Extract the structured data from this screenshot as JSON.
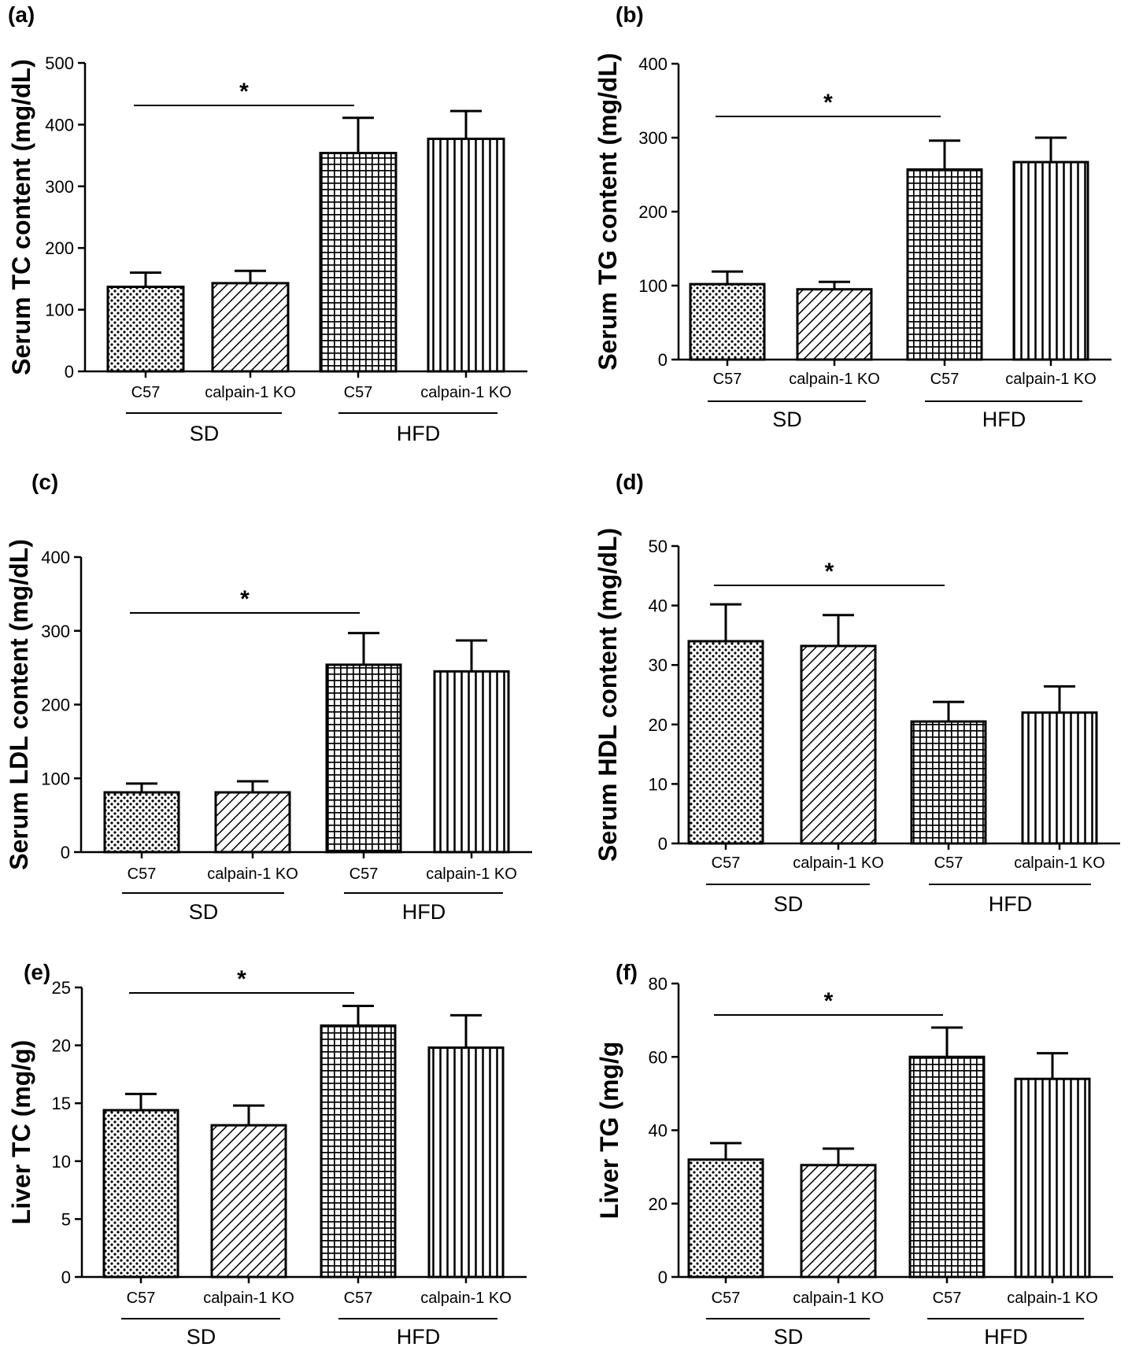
{
  "figure": {
    "layout": "3 rows x 2 columns bar charts",
    "bar_colors": {
      "fill": "#ffffff",
      "stroke": "#000000"
    },
    "bar_patterns": [
      "dots",
      "diagonal-hatch",
      "grid",
      "vertical-lines"
    ]
  },
  "chart_data": [
    {
      "label": "(a)",
      "type": "bar",
      "ylabel": "Serum TC content (mg/dL)",
      "ylim": [
        0,
        500
      ],
      "yticks": [
        0,
        100,
        200,
        300,
        400,
        500
      ],
      "categories": [
        "C57",
        "calpain-1 KO",
        "C57",
        "calpain-1 KO"
      ],
      "groups": [
        {
          "name": "SD",
          "categories": [
            0,
            1
          ]
        },
        {
          "name": "HFD",
          "categories": [
            2,
            3
          ]
        }
      ],
      "values": [
        137,
        143,
        354,
        377
      ],
      "errors": [
        23,
        20,
        57,
        45
      ],
      "significance": {
        "from": 0,
        "to": 2,
        "label": "*"
      }
    },
    {
      "label": "(b)",
      "type": "bar",
      "ylabel": "Serum TG content (mg/dL)",
      "ylim": [
        0,
        400
      ],
      "yticks": [
        0,
        100,
        200,
        300,
        400
      ],
      "categories": [
        "C57",
        "calpain-1 KO",
        "C57",
        "calpain-1 KO"
      ],
      "groups": [
        {
          "name": "SD",
          "categories": [
            0,
            1
          ]
        },
        {
          "name": "HFD",
          "categories": [
            2,
            3
          ]
        }
      ],
      "values": [
        102,
        95,
        257,
        267
      ],
      "errors": [
        17,
        10,
        39,
        33
      ],
      "significance": {
        "from": 0,
        "to": 2,
        "label": "*"
      }
    },
    {
      "label": "(c)",
      "type": "bar",
      "ylabel": "Serum LDL content (mg/dL)",
      "ylim": [
        0,
        400
      ],
      "yticks": [
        0,
        100,
        200,
        300,
        400
      ],
      "categories": [
        "C57",
        "calpain-1 KO",
        "C57",
        "calpain-1 KO"
      ],
      "groups": [
        {
          "name": "SD",
          "categories": [
            0,
            1
          ]
        },
        {
          "name": "HFD",
          "categories": [
            2,
            3
          ]
        }
      ],
      "values": [
        81,
        81,
        254,
        245
      ],
      "errors": [
        12,
        15,
        43,
        42
      ],
      "significance": {
        "from": 0,
        "to": 2,
        "label": "*"
      }
    },
    {
      "label": "(d)",
      "type": "bar",
      "ylabel": "Serum HDL content (mg/dL)",
      "ylim": [
        0,
        50
      ],
      "yticks": [
        0,
        10,
        20,
        30,
        40,
        50
      ],
      "categories": [
        "C57",
        "calpain-1 KO",
        "C57",
        "calpain-1 KO"
      ],
      "groups": [
        {
          "name": "SD",
          "categories": [
            0,
            1
          ]
        },
        {
          "name": "HFD",
          "categories": [
            2,
            3
          ]
        }
      ],
      "values": [
        34,
        33.2,
        20.5,
        22
      ],
      "errors": [
        6.2,
        5.2,
        3.3,
        4.4
      ],
      "significance": {
        "from": 0,
        "to": 2,
        "label": "*"
      }
    },
    {
      "label": "(e)",
      "type": "bar",
      "ylabel": "Liver TC (mg/g)",
      "ylim": [
        0,
        25
      ],
      "yticks": [
        0,
        5,
        10,
        15,
        20,
        25
      ],
      "categories": [
        "C57",
        "calpain-1 KO",
        "C57",
        "calpain-1 KO"
      ],
      "groups": [
        {
          "name": "SD",
          "categories": [
            0,
            1
          ]
        },
        {
          "name": "HFD",
          "categories": [
            2,
            3
          ]
        }
      ],
      "values": [
        14.4,
        13.1,
        21.7,
        19.8
      ],
      "errors": [
        1.4,
        1.7,
        1.7,
        2.8
      ],
      "significance": {
        "from": 0,
        "to": 2,
        "label": "*"
      }
    },
    {
      "label": "(f)",
      "type": "bar",
      "ylabel": "Liver TG (mg/g",
      "ylim": [
        0,
        80
      ],
      "yticks": [
        0,
        20,
        40,
        60,
        80
      ],
      "categories": [
        "C57",
        "calpain-1 KO",
        "C57",
        "calpain-1 KO"
      ],
      "groups": [
        {
          "name": "SD",
          "categories": [
            0,
            1
          ]
        },
        {
          "name": "HFD",
          "categories": [
            2,
            3
          ]
        }
      ],
      "values": [
        32,
        30.5,
        60,
        54
      ],
      "errors": [
        4.5,
        4.5,
        8,
        7
      ],
      "significance": {
        "from": 0,
        "to": 2,
        "label": "*"
      }
    }
  ]
}
